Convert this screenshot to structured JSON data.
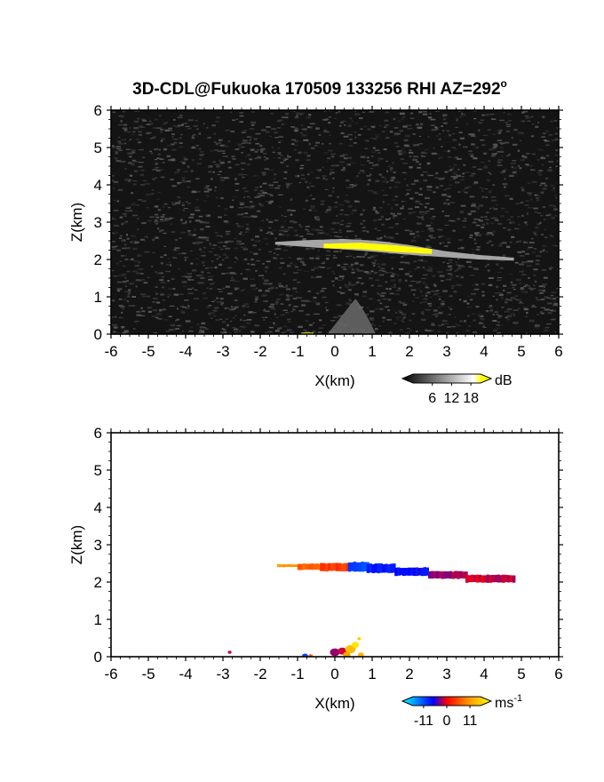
{
  "title": "3D-CDL@Fukuoka 170509 133256 RHI AZ=292",
  "title_superscript": "o",
  "chart_data": [
    {
      "type": "heatmap",
      "name": "snr",
      "xlabel": "X(km)",
      "ylabel": "Z(km)",
      "xlim": [
        -6,
        6
      ],
      "ylim": [
        0,
        6
      ],
      "xticks": [
        "-6",
        "-5",
        "-4",
        "-3",
        "-2",
        "-1",
        "0",
        "1",
        "2",
        "3",
        "4",
        "5",
        "6"
      ],
      "yticks": [
        "0",
        "1",
        "2",
        "3",
        "4",
        "5",
        "6"
      ],
      "background": "noise",
      "colorbar": {
        "unit": "dB",
        "ticks": [
          "6",
          "12",
          "18"
        ],
        "tick_values": [
          6,
          12,
          18
        ],
        "range": [
          0,
          21
        ],
        "colors": [
          "#000000",
          "#ffffff",
          "#ffff00"
        ]
      },
      "features": [
        {
          "kind": "layer",
          "x": [
            -1.6,
            4.8
          ],
          "z_top": [
            2.47,
            2.52,
            2.55,
            2.5,
            2.38,
            2.22,
            2.12,
            2.05
          ],
          "z_bot": [
            2.4,
            2.33,
            2.27,
            2.2,
            2.12,
            2.06,
            2.0,
            1.97
          ],
          "value": 12
        },
        {
          "kind": "core",
          "x": [
            -0.3,
            2.6
          ],
          "z_top": [
            2.42,
            2.45,
            2.38,
            2.28
          ],
          "z_bot": [
            2.3,
            2.28,
            2.2,
            2.15
          ],
          "value": 20
        },
        {
          "kind": "plume",
          "x_base": [
            -0.2,
            1.1
          ],
          "x_peak": 0.55,
          "z_peak": 0.95,
          "value": 7
        }
      ]
    },
    {
      "type": "heatmap",
      "name": "velocity",
      "xlabel": "X(km)",
      "ylabel": "Z(km)",
      "xlim": [
        -6,
        6
      ],
      "ylim": [
        0,
        6
      ],
      "xticks": [
        "-6",
        "-5",
        "-4",
        "-3",
        "-2",
        "-1",
        "0",
        "1",
        "2",
        "3",
        "4",
        "5",
        "6"
      ],
      "yticks": [
        "0",
        "1",
        "2",
        "3",
        "4",
        "5",
        "6"
      ],
      "background": "none",
      "colorbar": {
        "unit": "ms",
        "unit_superscript": "-1",
        "ticks": [
          "-11",
          "0",
          "11"
        ],
        "tick_values": [
          -11,
          0,
          11
        ],
        "range": [
          -16,
          16
        ],
        "colors": [
          "#00ffff",
          "#0000ff",
          "#ff0000",
          "#ff9900",
          "#ffff00"
        ]
      },
      "segments": [
        {
          "x0": -1.55,
          "x1": -1.0,
          "z_top": 2.48,
          "z_bot": 2.4,
          "v": 8
        },
        {
          "x0": -1.0,
          "x1": -0.4,
          "z_top": 2.5,
          "z_bot": 2.32,
          "v": 5
        },
        {
          "x0": -0.4,
          "x1": 0.35,
          "z_top": 2.52,
          "z_bot": 2.28,
          "v": 3
        },
        {
          "x0": 0.35,
          "x1": 0.85,
          "z_top": 2.55,
          "z_bot": 2.27,
          "v": -8
        },
        {
          "x0": 0.85,
          "x1": 1.6,
          "z_top": 2.5,
          "z_bot": 2.23,
          "v": -6
        },
        {
          "x0": 1.6,
          "x1": 2.5,
          "z_top": 2.4,
          "z_bot": 2.16,
          "v": -5
        },
        {
          "x0": 2.5,
          "x1": 3.5,
          "z_top": 2.3,
          "z_bot": 2.08,
          "v": -2
        },
        {
          "x0": 3.5,
          "x1": 4.8,
          "z_top": 2.2,
          "z_bot": 1.98,
          "v": -1
        }
      ],
      "blobs": [
        {
          "x": -2.82,
          "z": 0.12,
          "r": 0.05,
          "v": -1
        },
        {
          "x": -0.8,
          "z": 0.02,
          "r": 0.08,
          "v": -8
        },
        {
          "x": -0.65,
          "z": 0.02,
          "r": 0.06,
          "v": 5
        },
        {
          "x": 0.0,
          "z": 0.12,
          "r": 0.13,
          "v": -2
        },
        {
          "x": 0.2,
          "z": 0.15,
          "r": 0.12,
          "v": -1
        },
        {
          "x": 0.42,
          "z": 0.2,
          "r": 0.14,
          "v": 11
        },
        {
          "x": 0.55,
          "z": 0.32,
          "r": 0.1,
          "v": 14
        },
        {
          "x": 0.32,
          "z": 0.05,
          "r": 0.1,
          "v": 9
        },
        {
          "x": 0.65,
          "z": 0.48,
          "r": 0.05,
          "v": 12
        },
        {
          "x": 0.7,
          "z": 0.05,
          "r": 0.08,
          "v": 10
        }
      ]
    }
  ]
}
